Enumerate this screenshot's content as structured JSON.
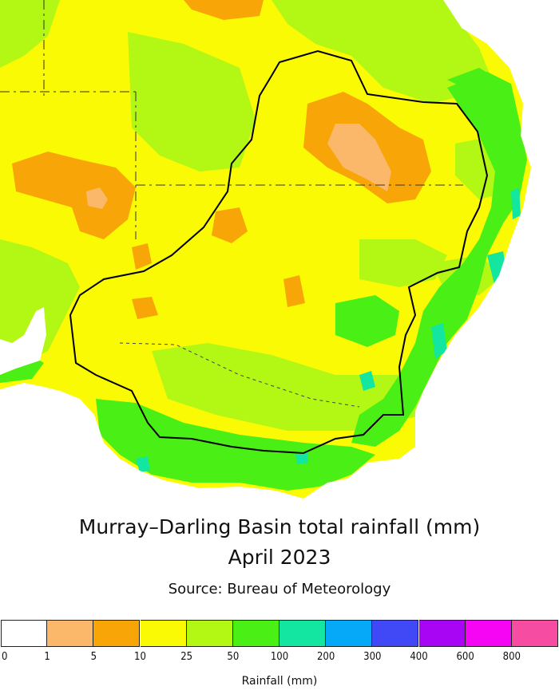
{
  "title_line1": "Murray–Darling Basin total rainfall (mm)",
  "title_line2": "April 2023",
  "source": "Source: Bureau of Meteorology",
  "legend": {
    "label": "Rainfall (mm)",
    "ticks": [
      "0",
      "1",
      "5",
      "10",
      "25",
      "50",
      "100",
      "200",
      "300",
      "400",
      "600",
      "800"
    ],
    "colors": [
      "#ffffff",
      "#fcb86a",
      "#f8a507",
      "#fbfa05",
      "#b3f714",
      "#49ef15",
      "#12e6a0",
      "#05a9f8",
      "#4149f6",
      "#a805f4",
      "#f505f4",
      "#f64da3"
    ]
  },
  "map": {
    "region": "Murray–Darling Basin, south-eastern Australia",
    "ocean_color": "#ffffff",
    "boundary_color": "#000000"
  }
}
